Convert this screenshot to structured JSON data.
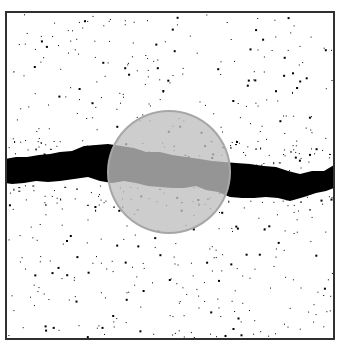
{
  "image": {
    "description_kind": "binary-noise-scene",
    "background_color": "#ffffff",
    "frame_color": "#303030",
    "band_color": "#000000",
    "dot_color": "#000000",
    "overlay_circle": {
      "fill_color": "#bfbfbf",
      "edge_color": "#a6a6a6",
      "fill_opacity": 0.78
    }
  }
}
